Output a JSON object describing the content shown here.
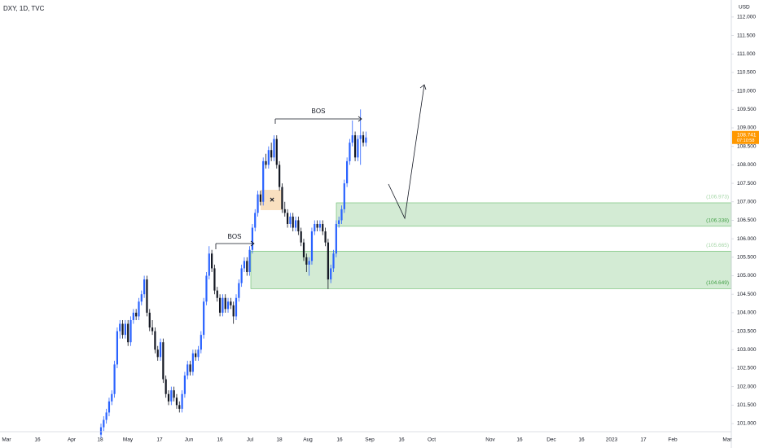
{
  "chart_data": {
    "type": "candlestick",
    "title": "DXY, 1D, TVC",
    "currency": "USD",
    "up_color": "#2962ff",
    "down_color": "#131722",
    "ylim": [
      100.78,
      112.46
    ],
    "yticks": [
      {
        "value": 101,
        "label": "101.000"
      },
      {
        "value": 101.5,
        "label": "101.500"
      },
      {
        "value": 102,
        "label": "102.000"
      },
      {
        "value": 102.5,
        "label": "102.500"
      },
      {
        "value": 103,
        "label": "103.000"
      },
      {
        "value": 103.5,
        "label": "103.500"
      },
      {
        "value": 104,
        "label": "104.000"
      },
      {
        "value": 104.5,
        "label": "104.500"
      },
      {
        "value": 105,
        "label": "105.000"
      },
      {
        "value": 105.5,
        "label": "105.500"
      },
      {
        "value": 106,
        "label": "106.000"
      },
      {
        "value": 106.5,
        "label": "106.500"
      },
      {
        "value": 107,
        "label": "107.000"
      },
      {
        "value": 107.5,
        "label": "107.500"
      },
      {
        "value": 108,
        "label": "108.000"
      },
      {
        "value": 108.5,
        "label": "108.500"
      },
      {
        "value": 109,
        "label": "109.000"
      },
      {
        "value": 109.5,
        "label": "109.500"
      },
      {
        "value": 110,
        "label": "110.000"
      },
      {
        "value": 110.5,
        "label": "110.500"
      },
      {
        "value": 111,
        "label": "111.000"
      },
      {
        "value": 111.5,
        "label": "111.500"
      },
      {
        "value": 112,
        "label": "112.000"
      }
    ],
    "xticks": [
      "Mar",
      "16",
      "Apr",
      "18",
      "May",
      "17",
      "Jun",
      "16",
      "Jul",
      "18",
      "Aug",
      "16",
      "Sep",
      "16",
      "Oct",
      "Nov",
      "16",
      "Dec",
      "16",
      "2023",
      "17",
      "Feb",
      "Mar"
    ],
    "candles": [
      [
        100.7,
        101.0,
        100.6,
        100.9
      ],
      [
        100.9,
        101.2,
        100.8,
        101.1
      ],
      [
        101.1,
        101.4,
        101.0,
        101.3
      ],
      [
        101.3,
        101.7,
        101.2,
        101.6
      ],
      [
        101.6,
        101.9,
        101.5,
        101.8
      ],
      [
        101.8,
        102.7,
        101.7,
        102.6
      ],
      [
        102.6,
        103.6,
        102.5,
        103.5
      ],
      [
        103.5,
        103.8,
        103.3,
        103.7
      ],
      [
        103.7,
        103.8,
        103.3,
        103.4
      ],
      [
        103.4,
        103.8,
        103.3,
        103.7
      ],
      [
        103.7,
        103.8,
        103.1,
        103.2
      ],
      [
        103.2,
        103.9,
        103.1,
        103.8
      ],
      [
        103.8,
        104.1,
        103.7,
        104.0
      ],
      [
        104.0,
        104.1,
        103.8,
        103.9
      ],
      [
        103.9,
        104.4,
        103.8,
        104.3
      ],
      [
        104.3,
        104.6,
        104.2,
        104.5
      ],
      [
        104.5,
        105.0,
        104.4,
        104.9
      ],
      [
        104.9,
        105.0,
        103.9,
        104.0
      ],
      [
        104.0,
        104.1,
        103.5,
        103.6
      ],
      [
        103.6,
        103.8,
        103.4,
        103.5
      ],
      [
        103.5,
        103.6,
        102.9,
        103.0
      ],
      [
        103.0,
        103.1,
        102.7,
        102.8
      ],
      [
        102.8,
        103.3,
        102.7,
        103.2
      ],
      [
        103.2,
        103.3,
        102.1,
        102.2
      ],
      [
        102.2,
        102.3,
        101.7,
        101.8
      ],
      [
        101.8,
        101.9,
        101.5,
        101.6
      ],
      [
        101.6,
        102.0,
        101.5,
        101.9
      ],
      [
        101.9,
        102.0,
        101.6,
        101.7
      ],
      [
        101.7,
        101.8,
        101.4,
        101.5
      ],
      [
        101.5,
        101.6,
        101.3,
        101.4
      ],
      [
        101.4,
        101.9,
        101.3,
        101.8
      ],
      [
        101.8,
        102.4,
        101.7,
        102.3
      ],
      [
        102.3,
        102.7,
        102.2,
        102.6
      ],
      [
        102.6,
        102.7,
        102.3,
        102.4
      ],
      [
        102.4,
        103.0,
        102.3,
        102.9
      ],
      [
        102.9,
        103.0,
        102.7,
        102.8
      ],
      [
        102.8,
        103.1,
        102.7,
        103.0
      ],
      [
        103.0,
        103.5,
        102.9,
        103.4
      ],
      [
        103.4,
        104.4,
        103.3,
        104.3
      ],
      [
        104.3,
        105.1,
        104.2,
        105.0
      ],
      [
        105.0,
        105.8,
        104.9,
        105.6
      ],
      [
        105.6,
        105.7,
        105.1,
        105.2
      ],
      [
        105.2,
        105.3,
        104.5,
        104.6
      ],
      [
        104.6,
        104.7,
        104.3,
        104.4
      ],
      [
        104.4,
        104.5,
        103.9,
        104.0
      ],
      [
        104.0,
        104.5,
        103.9,
        104.4
      ],
      [
        104.4,
        104.5,
        104.0,
        104.1
      ],
      [
        104.1,
        104.4,
        104.0,
        104.3
      ],
      [
        104.3,
        104.4,
        104.1,
        104.2
      ],
      [
        104.2,
        104.3,
        103.7,
        103.9
      ],
      [
        103.9,
        104.5,
        103.8,
        104.4
      ],
      [
        104.4,
        104.9,
        104.3,
        104.8
      ],
      [
        104.8,
        105.3,
        104.7,
        105.2
      ],
      [
        105.2,
        105.5,
        105.1,
        105.4
      ],
      [
        105.4,
        105.5,
        105.0,
        105.1
      ],
      [
        105.1,
        105.8,
        105.0,
        105.7
      ],
      [
        105.7,
        106.4,
        105.6,
        106.3
      ],
      [
        106.3,
        106.8,
        106.2,
        106.7
      ],
      [
        106.7,
        107.3,
        106.6,
        107.2
      ],
      [
        107.2,
        107.3,
        106.9,
        107.0
      ],
      [
        107.0,
        108.2,
        106.9,
        108.1
      ],
      [
        108.1,
        108.3,
        107.9,
        108.0
      ],
      [
        108.0,
        108.5,
        107.9,
        108.4
      ],
      [
        108.4,
        108.6,
        108.1,
        108.2
      ],
      [
        108.2,
        108.8,
        108.1,
        108.7
      ],
      [
        108.7,
        108.8,
        107.9,
        108.0
      ],
      [
        108.0,
        108.1,
        107.3,
        107.4
      ],
      [
        107.4,
        107.5,
        106.7,
        106.8
      ],
      [
        106.8,
        107.0,
        106.6,
        106.7
      ],
      [
        106.7,
        106.8,
        106.3,
        106.4
      ],
      [
        106.4,
        106.7,
        106.3,
        106.6
      ],
      [
        106.6,
        106.7,
        106.2,
        106.3
      ],
      [
        106.3,
        106.6,
        106.2,
        106.5
      ],
      [
        106.5,
        106.6,
        106.1,
        106.2
      ],
      [
        106.2,
        106.3,
        105.8,
        105.9
      ],
      [
        105.9,
        106.0,
        105.4,
        105.5
      ],
      [
        105.5,
        105.6,
        105.1,
        105.3
      ],
      [
        105.3,
        105.5,
        105.0,
        105.4
      ],
      [
        105.4,
        106.3,
        105.3,
        106.2
      ],
      [
        106.2,
        106.5,
        106.1,
        106.4
      ],
      [
        106.4,
        106.5,
        106.2,
        106.3
      ],
      [
        106.3,
        106.5,
        106.2,
        106.4
      ],
      [
        106.4,
        106.5,
        106.1,
        106.2
      ],
      [
        106.2,
        106.3,
        105.8,
        105.9
      ],
      [
        105.9,
        106.0,
        104.64,
        104.9
      ],
      [
        104.9,
        105.3,
        104.8,
        105.2
      ],
      [
        105.2,
        105.7,
        105.1,
        105.6
      ],
      [
        105.6,
        106.5,
        105.5,
        106.4
      ],
      [
        106.4,
        106.6,
        106.3,
        106.5
      ],
      [
        106.5,
        106.9,
        106.4,
        106.8
      ],
      [
        106.8,
        107.6,
        106.7,
        107.5
      ],
      [
        107.5,
        108.2,
        107.4,
        108.1
      ],
      [
        108.1,
        108.7,
        108.0,
        108.6
      ],
      [
        108.6,
        109.2,
        108.5,
        108.8
      ],
      [
        108.8,
        108.9,
        108.1,
        108.2
      ],
      [
        108.2,
        108.8,
        108.1,
        108.7
      ],
      [
        108.7,
        109.5,
        108.0,
        108.8
      ],
      [
        108.8,
        108.9,
        108.5,
        108.6
      ],
      [
        108.6,
        108.9,
        108.5,
        108.74
      ]
    ],
    "zones": [
      {
        "top": {
          "value": 106.973,
          "label": "(106.973)"
        },
        "bottom": {
          "value": 106.338,
          "label": "(106.338)"
        }
      },
      {
        "top": {
          "value": 105.665,
          "label": "(105.665)"
        },
        "bottom": {
          "value": 104.649,
          "label": "(104.649)"
        }
      }
    ],
    "annotations": [
      "BOS",
      "BOS"
    ],
    "last_price": 108.741,
    "countdown": "07:10:58"
  }
}
